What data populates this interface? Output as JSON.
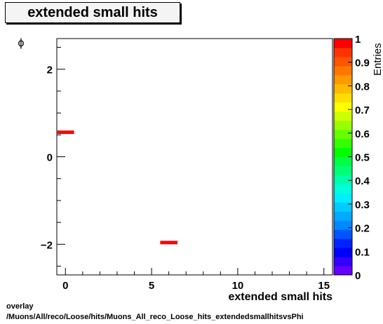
{
  "title": "extended small hits",
  "footer": {
    "line1": "overlay",
    "line2": "/Muons/All/reco/Loose/hits/Muons_All_reco_Loose_hits_extendedsmallhitsvsPhi"
  },
  "chart_data": {
    "type": "heatmap",
    "title": "extended small hits",
    "xlabel": "extended small hits",
    "ylabel": "ϕ",
    "zlabel": "Entries",
    "xlim": [
      -0.5,
      15.5
    ],
    "ylim": [
      -2.7,
      2.7
    ],
    "zlim": [
      0,
      1
    ],
    "x_ticks": [
      0,
      5,
      10,
      15
    ],
    "y_ticks": [
      -2,
      0,
      2
    ],
    "z_ticks": [
      "0",
      "0.1",
      "0.2",
      "0.3",
      "0.4",
      "0.5",
      "0.6",
      "0.7",
      "0.8",
      "0.9",
      "1"
    ],
    "cells": [
      {
        "x0": -0.5,
        "x1": 0.5,
        "y0": 0.52,
        "y1": 0.6,
        "value": 1
      },
      {
        "x0": 5.5,
        "x1": 6.5,
        "y0": -2.0,
        "y1": -1.92,
        "value": 1
      }
    ],
    "palette": [
      "#6600ff",
      "#3300ff",
      "#0000ff",
      "#0022ff",
      "#0055ff",
      "#0088ff",
      "#00aaff",
      "#00ccff",
      "#00eeff",
      "#00ffdd",
      "#00ffaa",
      "#00ff77",
      "#00ff44",
      "#00ff00",
      "#33ff00",
      "#66ff00",
      "#99ff00",
      "#ccff00",
      "#ffff00",
      "#ffdd00",
      "#ffbb00",
      "#ff9900",
      "#ff7700",
      "#ff5500",
      "#ff3300",
      "#ff0000"
    ],
    "legend": "color scale on right"
  }
}
